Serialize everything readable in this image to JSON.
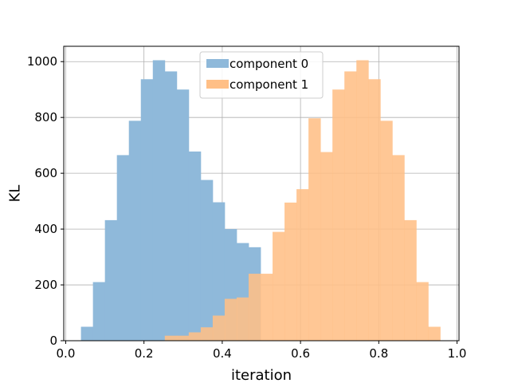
{
  "chart_data": {
    "type": "bar",
    "title": "",
    "xlabel": "iteration",
    "ylabel": "KL",
    "xlim": [
      -0.005,
      1.005
    ],
    "ylim": [
      0,
      1055
    ],
    "xticks": [
      0.0,
      0.2,
      0.4,
      0.6,
      0.8,
      1.0
    ],
    "xtick_labels": [
      "0.0",
      "0.2",
      "0.4",
      "0.6",
      "0.8",
      "1.0"
    ],
    "yticks": [
      0,
      200,
      400,
      600,
      800,
      1000
    ],
    "ytick_labels": [
      "0",
      "200",
      "400",
      "600",
      "800",
      "1000"
    ],
    "grid": true,
    "legend_position": "top-center",
    "series": [
      {
        "name": "component 0",
        "color": "#8fb9da",
        "bin_width": 0.0306,
        "bin_starts": [
          0.039,
          0.0696,
          0.1002,
          0.1308,
          0.1614,
          0.192,
          0.2226,
          0.2532,
          0.2838,
          0.3144,
          0.345,
          0.3756,
          0.4062,
          0.4368,
          0.4674
        ],
        "values": [
          50,
          210,
          432,
          665,
          788,
          937,
          1005,
          965,
          900,
          678,
          576,
          496,
          400,
          350,
          335
        ]
      },
      {
        "name": "component 1",
        "color": "#ffbf86",
        "bin_width": 0.0306,
        "bin_starts": [
          0.2532,
          0.2838,
          0.3144,
          0.345,
          0.3756,
          0.4062,
          0.4368,
          0.4674,
          0.498,
          0.5286,
          0.5592,
          0.5898,
          0.6204,
          0.651,
          0.6816,
          0.7122,
          0.7428,
          0.7734,
          0.804,
          0.8346,
          0.8652,
          0.8958,
          0.9264
        ],
        "values": [
          18,
          18,
          30,
          48,
          90,
          150,
          155,
          240,
          240,
          390,
          495,
          543,
          797,
          676,
          900,
          965,
          1005,
          937,
          788,
          665,
          432,
          210,
          50
        ]
      }
    ]
  }
}
